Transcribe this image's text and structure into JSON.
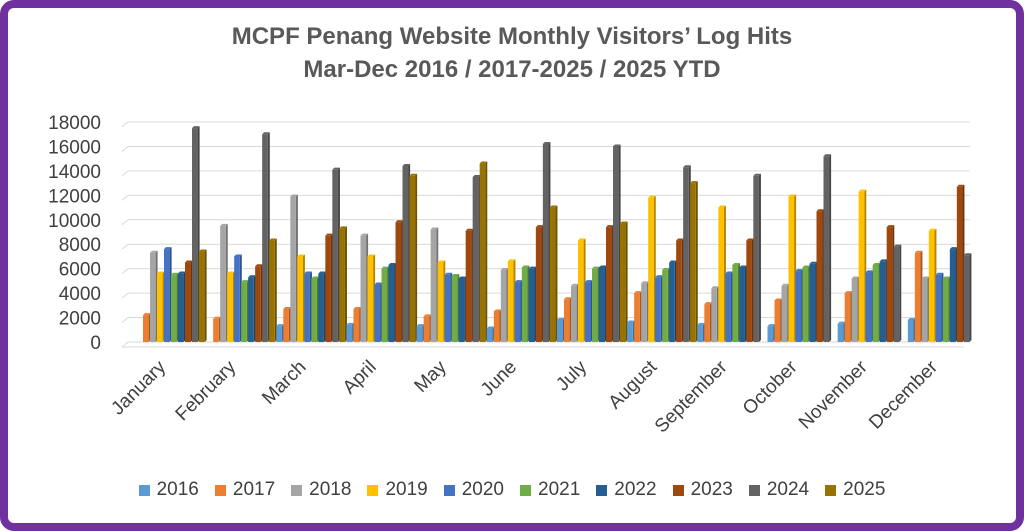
{
  "chart_data": {
    "type": "bar",
    "title_line1": "MCPF Penang Website Monthly Visitors’ Log Hits",
    "title_line2": "Mar-Dec 2016 / 2017-2025 / 2025 YTD",
    "ylim": [
      0,
      18000
    ],
    "yticks": [
      "0",
      "2000",
      "4000",
      "6000",
      "8000",
      "10000",
      "12000",
      "14000",
      "16000",
      "18000"
    ],
    "grid": true,
    "legend_position": "bottom",
    "categories": [
      "January",
      "February",
      "March",
      "April",
      "May",
      "June",
      "July",
      "August",
      "September",
      "October",
      "November",
      "December"
    ],
    "series": [
      {
        "name": "2016",
        "color": "#5b9bd5",
        "values": [
          0,
          0,
          1300,
          1400,
          1300,
          1100,
          1800,
          1600,
          1400,
          1300,
          1500,
          1800
        ]
      },
      {
        "name": "2017",
        "color": "#ed7d31",
        "values": [
          2200,
          1900,
          2700,
          2700,
          2100,
          2500,
          3500,
          4000,
          3100,
          3400,
          4000,
          7300
        ]
      },
      {
        "name": "2018",
        "color": "#a5a5a5",
        "values": [
          7300,
          9500,
          11900,
          8700,
          9200,
          5900,
          4600,
          4800,
          4400,
          4600,
          5200,
          5200
        ]
      },
      {
        "name": "2019",
        "color": "#ffc000",
        "values": [
          5600,
          5600,
          7000,
          7000,
          6500,
          6600,
          8300,
          11800,
          11000,
          11900,
          12300,
          9100
        ]
      },
      {
        "name": "2020",
        "color": "#4472c4",
        "values": [
          7600,
          7000,
          5600,
          4700,
          5500,
          4900,
          4900,
          5300,
          5600,
          5800,
          5700,
          5500
        ]
      },
      {
        "name": "2021",
        "color": "#70ad47",
        "values": [
          5500,
          4900,
          5200,
          6000,
          5400,
          6100,
          6000,
          5900,
          6300,
          6100,
          6300,
          5200
        ]
      },
      {
        "name": "2022",
        "color": "#255e91",
        "values": [
          5600,
          5300,
          5600,
          6300,
          5200,
          6000,
          6100,
          6500,
          6100,
          6400,
          6600,
          7600
        ]
      },
      {
        "name": "2023",
        "color": "#9e480e",
        "values": [
          6500,
          6200,
          8700,
          9800,
          9100,
          9400,
          9400,
          8300,
          8300,
          10700,
          9400,
          12700
        ]
      },
      {
        "name": "2024",
        "color": "#636363",
        "values": [
          17500,
          17000,
          14100,
          14400,
          13500,
          16200,
          16000,
          14300,
          13600,
          15200,
          7800,
          7100
        ]
      },
      {
        "name": "2025",
        "color": "#997300",
        "values": [
          7400,
          8300,
          9300,
          13600,
          14600,
          11000,
          9700,
          13000,
          0,
          0,
          0,
          0
        ]
      }
    ]
  }
}
